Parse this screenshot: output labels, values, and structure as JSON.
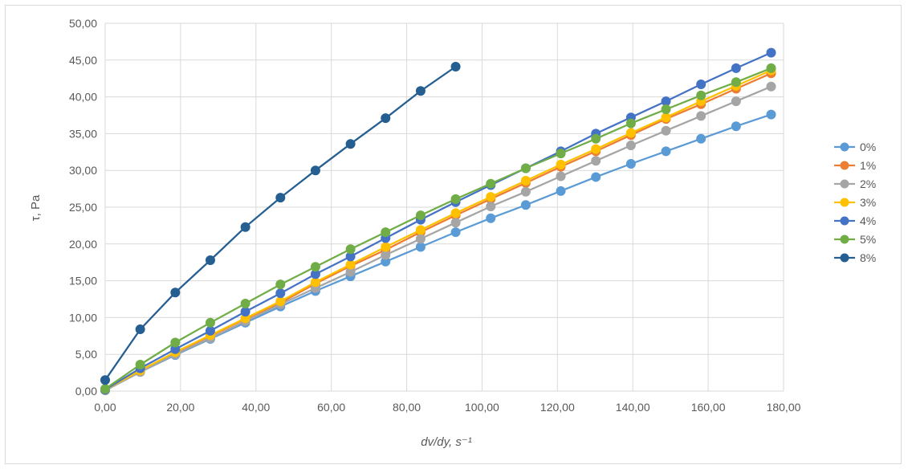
{
  "chart_data": {
    "type": "line",
    "title": "",
    "xlabel": "dv/dy, s⁻¹",
    "ylabel": "τ, Pa",
    "xlim": [
      0,
      180
    ],
    "ylim": [
      0,
      50
    ],
    "x_ticks": [
      "0,00",
      "20,00",
      "40,00",
      "60,00",
      "80,00",
      "100,00",
      "120,00",
      "140,00",
      "160,00",
      "180,00"
    ],
    "y_ticks": [
      "0,00",
      "5,00",
      "10,00",
      "15,00",
      "20,00",
      "25,00",
      "30,00",
      "35,00",
      "40,00",
      "45,00",
      "50,00"
    ],
    "grid": true,
    "legend_position": "right",
    "series": [
      {
        "name": "0%",
        "color": "#5b9bd5",
        "x": [
          0,
          9.3,
          18.6,
          27.9,
          37.2,
          46.5,
          55.8,
          65.1,
          74.4,
          83.7,
          93.0,
          102.3,
          111.6,
          120.9,
          130.2,
          139.5,
          148.8,
          158.1,
          167.4,
          176.7
        ],
        "y": [
          0.1,
          2.6,
          4.9,
          7.1,
          9.3,
          11.5,
          13.6,
          15.6,
          17.6,
          19.6,
          21.6,
          23.5,
          25.3,
          27.2,
          29.1,
          30.9,
          32.6,
          34.3,
          36.0,
          37.6
        ]
      },
      {
        "name": "1%",
        "color": "#ed7d31",
        "x": [
          0,
          9.3,
          18.6,
          27.9,
          37.2,
          46.5,
          55.8,
          65.1,
          74.4,
          83.7,
          93.0,
          102.3,
          111.6,
          120.9,
          130.2,
          139.5,
          148.8,
          158.1,
          167.4,
          176.7
        ],
        "y": [
          0.2,
          2.7,
          5.2,
          7.5,
          9.8,
          12.0,
          14.6,
          17.0,
          19.2,
          21.6,
          23.9,
          26.1,
          28.3,
          30.5,
          32.6,
          34.8,
          37.0,
          39.0,
          41.1,
          43.2
        ]
      },
      {
        "name": "2%",
        "color": "#a5a5a5",
        "x": [
          0,
          9.3,
          18.6,
          27.9,
          37.2,
          46.5,
          55.8,
          65.1,
          74.4,
          83.7,
          93.0,
          102.3,
          111.6,
          120.9,
          130.2,
          139.5,
          148.8,
          158.1,
          167.4,
          176.7
        ],
        "y": [
          0.1,
          2.6,
          5.0,
          7.2,
          9.5,
          11.8,
          14.0,
          16.2,
          18.5,
          20.7,
          22.9,
          25.1,
          27.1,
          29.2,
          31.3,
          33.4,
          35.4,
          37.4,
          39.4,
          41.4
        ]
      },
      {
        "name": "3%",
        "color": "#ffc000",
        "x": [
          0,
          9.3,
          18.6,
          27.9,
          37.2,
          46.5,
          55.8,
          65.1,
          74.4,
          83.7,
          93.0,
          102.3,
          111.6,
          120.9,
          130.2,
          139.5,
          148.8,
          158.1,
          167.4,
          176.7
        ],
        "y": [
          0.2,
          2.8,
          5.3,
          7.6,
          9.9,
          12.2,
          14.8,
          17.2,
          19.6,
          21.9,
          24.2,
          26.4,
          28.6,
          30.8,
          32.9,
          35.1,
          37.2,
          39.4,
          41.5,
          43.6
        ]
      },
      {
        "name": "4%",
        "color": "#4472c4",
        "x": [
          0,
          9.3,
          18.6,
          27.9,
          37.2,
          46.5,
          55.8,
          65.1,
          74.4,
          83.7,
          93.0,
          102.3,
          111.6,
          120.9,
          130.2,
          139.5,
          148.8,
          158.1,
          167.4,
          176.7
        ],
        "y": [
          0.2,
          3.1,
          5.7,
          8.2,
          10.8,
          13.3,
          15.9,
          18.3,
          20.8,
          23.3,
          25.7,
          28.0,
          30.3,
          32.6,
          35.0,
          37.2,
          39.4,
          41.7,
          43.9,
          46.0
        ]
      },
      {
        "name": "5%",
        "color": "#70ad47",
        "x": [
          0,
          9.3,
          18.6,
          27.9,
          37.2,
          46.5,
          55.8,
          65.1,
          74.4,
          83.7,
          93.0,
          102.3,
          111.6,
          120.9,
          130.2,
          139.5,
          148.8,
          158.1,
          167.4,
          176.7
        ],
        "y": [
          0.3,
          3.6,
          6.6,
          9.3,
          11.9,
          14.5,
          16.9,
          19.3,
          21.6,
          23.9,
          26.1,
          28.2,
          30.3,
          32.3,
          34.3,
          36.4,
          38.3,
          40.2,
          42.0,
          43.9
        ]
      },
      {
        "name": "8%",
        "color": "#255e91",
        "x": [
          0,
          9.3,
          18.6,
          27.9,
          37.2,
          46.5,
          55.8,
          65.1,
          74.4,
          83.7,
          93.0
        ],
        "y": [
          1.5,
          8.4,
          13.4,
          17.8,
          22.3,
          26.3,
          30.0,
          33.6,
          37.1,
          40.8,
          44.1
        ]
      }
    ]
  }
}
